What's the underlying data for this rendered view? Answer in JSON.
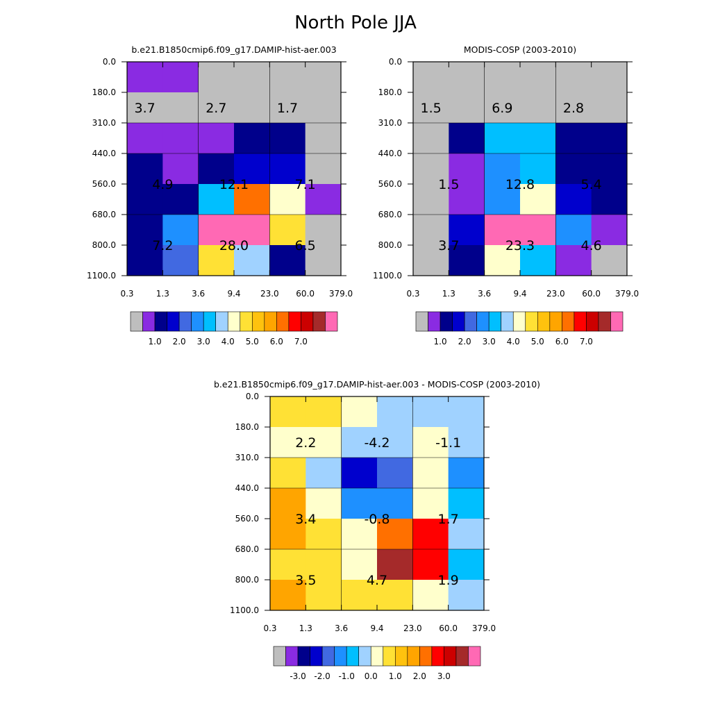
{
  "figure_title": "North Pole JJA",
  "colors": {
    "frame": "#000000",
    "grid": "#000000",
    "missing": "#BEBEBE"
  },
  "chart_data": [
    {
      "type": "heatmap",
      "title": "b.e21.B1850cmip6.f09_g17.DAMIP-hist-aer.003",
      "xlabel": "",
      "ylabel": "",
      "x_ticks": [
        "0.3",
        "1.3",
        "3.6",
        "9.4",
        "23.0",
        "60.0",
        "379.0"
      ],
      "y_ticks": [
        "0.0",
        "180.0",
        "310.0",
        "440.0",
        "560.0",
        "680.0",
        "800.0",
        "1100.0"
      ],
      "colorbar": {
        "colors": [
          "#BEBEBE",
          "#8A2BE2",
          "#00008B",
          "#0000CD",
          "#4169E1",
          "#1E90FF",
          "#00BFFF",
          "#A0D2FF",
          "#FFFFCC",
          "#FFE135",
          "#FFC20E",
          "#FFA500",
          "#FF7000",
          "#FF0000",
          "#CC0000",
          "#A52A2A",
          "#FF69B4"
        ],
        "tick_labels": [
          "1.0",
          "2.0",
          "3.0",
          "4.0",
          "5.0",
          "6.0",
          "7.0"
        ],
        "label_positions": [
          2,
          4,
          6,
          8,
          10,
          12,
          14
        ]
      },
      "cells": [
        [
          "#8A2BE2",
          "#8A2BE2",
          "#BEBEBE",
          "#BEBEBE",
          "#BEBEBE",
          "#BEBEBE"
        ],
        [
          "#BEBEBE",
          "#BEBEBE",
          "#BEBEBE",
          "#BEBEBE",
          "#BEBEBE",
          "#BEBEBE"
        ],
        [
          "#8A2BE2",
          "#8A2BE2",
          "#8A2BE2",
          "#00008B",
          "#00008B",
          "#BEBEBE"
        ],
        [
          "#00008B",
          "#8A2BE2",
          "#00008B",
          "#0000CD",
          "#0000CD",
          "#BEBEBE"
        ],
        [
          "#00008B",
          "#00008B",
          "#00BFFF",
          "#FF7000",
          "#FFFFCC",
          "#8A2BE2"
        ],
        [
          "#00008B",
          "#1E90FF",
          "#FF69B4",
          "#FF69B4",
          "#FFE135",
          "#BEBEBE"
        ],
        [
          "#00008B",
          "#4169E1",
          "#FFE135",
          "#A0D2FF",
          "#00008B",
          "#BEBEBE"
        ]
      ],
      "annotations": [
        {
          "x_index": 0.5,
          "y_index": 1.5,
          "text": "3.7"
        },
        {
          "x_index": 2.5,
          "y_index": 1.5,
          "text": "2.7"
        },
        {
          "x_index": 4.5,
          "y_index": 1.5,
          "text": "1.7"
        },
        {
          "x_index": 1.0,
          "y_index": 4.0,
          "text": "4.9"
        },
        {
          "x_index": 3.0,
          "y_index": 4.0,
          "text": "12.1"
        },
        {
          "x_index": 5.0,
          "y_index": 4.0,
          "text": "7.1"
        },
        {
          "x_index": 1.0,
          "y_index": 6.0,
          "text": "7.2"
        },
        {
          "x_index": 3.0,
          "y_index": 6.0,
          "text": "28.0"
        },
        {
          "x_index": 5.0,
          "y_index": 6.0,
          "text": "6.5"
        }
      ]
    },
    {
      "type": "heatmap",
      "title": "MODIS-COSP (2003-2010)",
      "xlabel": "",
      "ylabel": "",
      "x_ticks": [
        "0.3",
        "1.3",
        "3.6",
        "9.4",
        "23.0",
        "60.0",
        "379.0"
      ],
      "y_ticks": [
        "0.0",
        "180.0",
        "310.0",
        "440.0",
        "560.0",
        "680.0",
        "800.0",
        "1100.0"
      ],
      "colorbar": {
        "colors": [
          "#BEBEBE",
          "#8A2BE2",
          "#00008B",
          "#0000CD",
          "#4169E1",
          "#1E90FF",
          "#00BFFF",
          "#A0D2FF",
          "#FFFFCC",
          "#FFE135",
          "#FFC20E",
          "#FFA500",
          "#FF7000",
          "#FF0000",
          "#CC0000",
          "#A52A2A",
          "#FF69B4"
        ],
        "tick_labels": [
          "1.0",
          "2.0",
          "3.0",
          "4.0",
          "5.0",
          "6.0",
          "7.0"
        ],
        "label_positions": [
          2,
          4,
          6,
          8,
          10,
          12,
          14
        ]
      },
      "cells": [
        [
          "#BEBEBE",
          "#BEBEBE",
          "#BEBEBE",
          "#BEBEBE",
          "#BEBEBE",
          "#BEBEBE"
        ],
        [
          "#BEBEBE",
          "#BEBEBE",
          "#BEBEBE",
          "#BEBEBE",
          "#BEBEBE",
          "#BEBEBE"
        ],
        [
          "#BEBEBE",
          "#00008B",
          "#00BFFF",
          "#00BFFF",
          "#00008B",
          "#00008B"
        ],
        [
          "#BEBEBE",
          "#8A2BE2",
          "#1E90FF",
          "#00BFFF",
          "#00008B",
          "#00008B"
        ],
        [
          "#BEBEBE",
          "#8A2BE2",
          "#1E90FF",
          "#FFFFCC",
          "#0000CD",
          "#00008B"
        ],
        [
          "#BEBEBE",
          "#0000CD",
          "#FF69B4",
          "#FF69B4",
          "#1E90FF",
          "#8A2BE2"
        ],
        [
          "#BEBEBE",
          "#00008B",
          "#FFFFCC",
          "#00BFFF",
          "#8A2BE2",
          "#BEBEBE"
        ]
      ],
      "annotations": [
        {
          "x_index": 0.5,
          "y_index": 1.5,
          "text": "1.5"
        },
        {
          "x_index": 2.5,
          "y_index": 1.5,
          "text": "6.9"
        },
        {
          "x_index": 4.5,
          "y_index": 1.5,
          "text": "2.8"
        },
        {
          "x_index": 1.0,
          "y_index": 4.0,
          "text": "1.5"
        },
        {
          "x_index": 3.0,
          "y_index": 4.0,
          "text": "12.8"
        },
        {
          "x_index": 5.0,
          "y_index": 4.0,
          "text": "5.4"
        },
        {
          "x_index": 1.0,
          "y_index": 6.0,
          "text": "3.7"
        },
        {
          "x_index": 3.0,
          "y_index": 6.0,
          "text": "23.3"
        },
        {
          "x_index": 5.0,
          "y_index": 6.0,
          "text": "4.6"
        }
      ]
    },
    {
      "type": "heatmap",
      "title": "b.e21.B1850cmip6.f09_g17.DAMIP-hist-aer.003 - MODIS-COSP (2003-2010)",
      "xlabel": "",
      "ylabel": "",
      "x_ticks": [
        "0.3",
        "1.3",
        "3.6",
        "9.4",
        "23.0",
        "60.0",
        "379.0"
      ],
      "y_ticks": [
        "0.0",
        "180.0",
        "310.0",
        "440.0",
        "560.0",
        "680.0",
        "800.0",
        "1100.0"
      ],
      "colorbar": {
        "colors": [
          "#BEBEBE",
          "#8A2BE2",
          "#00008B",
          "#0000CD",
          "#4169E1",
          "#1E90FF",
          "#00BFFF",
          "#A0D2FF",
          "#FFFFCC",
          "#FFE135",
          "#FFC20E",
          "#FFA500",
          "#FF7000",
          "#FF0000",
          "#CC0000",
          "#A52A2A",
          "#FF69B4"
        ],
        "tick_labels": [
          "-3.0",
          "-2.0",
          "-1.0",
          "0.0",
          "1.0",
          "2.0",
          "3.0"
        ],
        "label_positions": [
          2,
          4,
          6,
          8,
          10,
          12,
          14
        ]
      },
      "cells": [
        [
          "#FFE135",
          "#FFE135",
          "#FFFFCC",
          "#A0D2FF",
          "#A0D2FF",
          "#A0D2FF"
        ],
        [
          "#FFFFCC",
          "#FFFFCC",
          "#A0D2FF",
          "#A0D2FF",
          "#FFFFCC",
          "#A0D2FF"
        ],
        [
          "#FFE135",
          "#A0D2FF",
          "#0000CD",
          "#4169E1",
          "#FFFFCC",
          "#1E90FF"
        ],
        [
          "#FFA500",
          "#FFFFCC",
          "#1E90FF",
          "#1E90FF",
          "#FFFFCC",
          "#00BFFF"
        ],
        [
          "#FFA500",
          "#FFE135",
          "#FFFFCC",
          "#FF7000",
          "#FF0000",
          "#A0D2FF"
        ],
        [
          "#FFE135",
          "#FFE135",
          "#FFFFCC",
          "#A52A2A",
          "#FF0000",
          "#00BFFF"
        ],
        [
          "#FFA500",
          "#FFE135",
          "#FFE135",
          "#FFE135",
          "#FFFFCC",
          "#A0D2FF"
        ]
      ],
      "annotations": [
        {
          "x_index": 1.0,
          "y_index": 1.5,
          "text": "2.2"
        },
        {
          "x_index": 3.0,
          "y_index": 1.5,
          "text": "-4.2"
        },
        {
          "x_index": 5.0,
          "y_index": 1.5,
          "text": "-1.1"
        },
        {
          "x_index": 1.0,
          "y_index": 4.0,
          "text": "3.4"
        },
        {
          "x_index": 3.0,
          "y_index": 4.0,
          "text": "-0.8"
        },
        {
          "x_index": 5.0,
          "y_index": 4.0,
          "text": "1.7"
        },
        {
          "x_index": 1.0,
          "y_index": 6.0,
          "text": "3.5"
        },
        {
          "x_index": 3.0,
          "y_index": 6.0,
          "text": "4.7"
        },
        {
          "x_index": 5.0,
          "y_index": 6.0,
          "text": "1.9"
        }
      ]
    }
  ]
}
